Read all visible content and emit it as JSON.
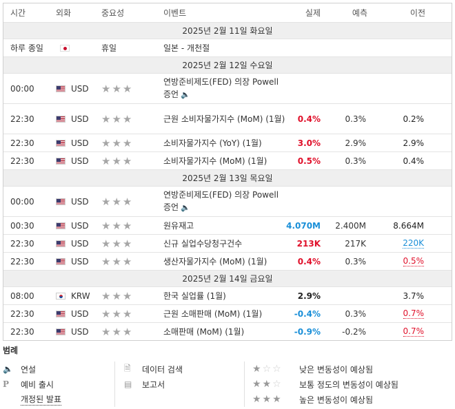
{
  "header": {
    "time": "시간",
    "currency": "외화",
    "importance": "중요성",
    "event": "이벤트",
    "actual": "실제",
    "forecast": "예측",
    "previous": "이전"
  },
  "day1": {
    "date": "2025년 2월 11일 화요일",
    "holiday": {
      "time": "하루 종일",
      "importance": "휴일",
      "event": "일본 - 개천절"
    }
  },
  "day2": {
    "date": "2025년 2월 12일 수요일",
    "events": [
      {
        "time": "00:00",
        "currency": "USD",
        "stars": "★★★",
        "event": "연방준비제도(FED) 의장 Powell 증언",
        "actual": "",
        "forecast": "",
        "previous": ""
      },
      {
        "time": "22:30",
        "currency": "USD",
        "stars": "★★★",
        "event": "근원 소비자물가지수 (MoM) (1월)",
        "actual": "0.4%",
        "forecast": "0.3%",
        "previous": "0.2%"
      },
      {
        "time": "22:30",
        "currency": "USD",
        "stars": "★★★",
        "event": "소비자물가지수 (YoY) (1월)",
        "actual": "3.0%",
        "forecast": "2.9%",
        "previous": "2.9%"
      },
      {
        "time": "22:30",
        "currency": "USD",
        "stars": "★★★",
        "event": "소비자물가지수 (MoM) (1월)",
        "actual": "0.5%",
        "forecast": "0.3%",
        "previous": "0.4%"
      }
    ]
  },
  "day3": {
    "date": "2025년 2월 13일 목요일",
    "events": [
      {
        "time": "00:00",
        "currency": "USD",
        "stars": "★★★",
        "event": "연방준비제도(FED) 의장 Powell 증언",
        "actual": "",
        "forecast": "",
        "previous": ""
      },
      {
        "time": "00:30",
        "currency": "USD",
        "stars": "★★★",
        "event": "원유재고",
        "actual": "4.070M",
        "forecast": "2.400M",
        "previous": "8.664M"
      },
      {
        "time": "22:30",
        "currency": "USD",
        "stars": "★★★",
        "event": "신규 실업수당청구건수",
        "actual": "213K",
        "forecast": "217K",
        "previous": "220K"
      },
      {
        "time": "22:30",
        "currency": "USD",
        "stars": "★★★",
        "event": "생산자물가지수 (MoM) (1월)",
        "actual": "0.4%",
        "forecast": "0.3%",
        "previous": "0.5%"
      }
    ]
  },
  "day4": {
    "date": "2025년 2월 14일 금요일",
    "events": [
      {
        "time": "08:00",
        "currency": "KRW",
        "stars": "★★★",
        "event": "한국 실업률 (1월)",
        "actual": "2.9%",
        "forecast": "",
        "previous": "3.7%"
      },
      {
        "time": "22:30",
        "currency": "USD",
        "stars": "★★★",
        "event": "근원 소매판매 (MoM) (1월)",
        "actual": "-0.4%",
        "forecast": "0.3%",
        "previous": "0.7%"
      },
      {
        "time": "22:30",
        "currency": "USD",
        "stars": "★★★",
        "event": "소매판매 (MoM) (1월)",
        "actual": "-0.9%",
        "forecast": "-0.2%",
        "previous": "0.7%"
      }
    ]
  },
  "legend": {
    "title": "범례",
    "speech": "연설",
    "preliminary": "예비 출시",
    "revised": "개정된 발표",
    "data_search": "데이터 검색",
    "report": "보고서",
    "low": "낮은 변동성이 예상됨",
    "medium": "보통 정도의 변동성이 예상됨",
    "high": "높은 변동성이 예상됨",
    "prelim_icon": "P"
  },
  "colors": {
    "positive": "#e0102a",
    "negative": "#1a8fd8",
    "date_bar": "#efefef"
  },
  "icons": [
    "speaker-icon",
    "search-doc-icon",
    "report-icon",
    "flag-us",
    "flag-jp",
    "flag-kr"
  ]
}
